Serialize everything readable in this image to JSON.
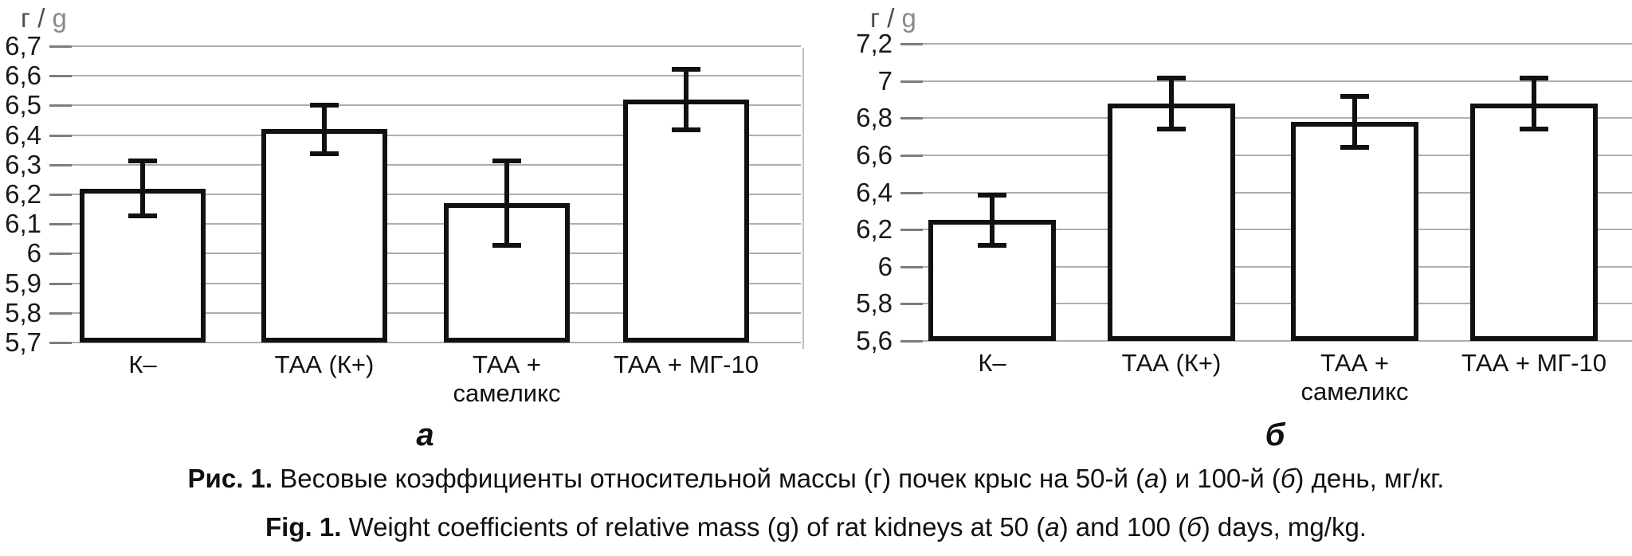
{
  "chart_data": [
    {
      "type": "bar",
      "panel_label": "а",
      "axis_title_prefix": "г / ",
      "axis_title_unit": "g",
      "categories": [
        "К–",
        "ТАА (К+)",
        "ТАА +\nсамеликс",
        "ТАА + МГ-10"
      ],
      "values": [
        6.22,
        6.42,
        6.17,
        6.52
      ],
      "errors": [
        0.1,
        0.09,
        0.15,
        0.11
      ],
      "ylim": [
        5.7,
        6.7
      ],
      "ytick_step": 0.1,
      "ytick_labels": [
        "6,7",
        "6,6",
        "6,5",
        "6,4",
        "6,3",
        "6,2",
        "6,1",
        "6",
        "5,9",
        "5,8",
        "5,7"
      ],
      "grid": true,
      "bar_fill": "#ffffff",
      "bar_border": "#111111"
    },
    {
      "type": "bar",
      "panel_label": "б",
      "axis_title_prefix": "г / ",
      "axis_title_unit": "g",
      "categories": [
        "К–",
        "ТАА (К+)",
        "ТАА +\nсамеликс",
        "ТАА + МГ-10"
      ],
      "values": [
        6.25,
        6.88,
        6.78,
        6.88
      ],
      "errors": [
        0.15,
        0.15,
        0.15,
        0.15
      ],
      "ylim": [
        5.6,
        7.2
      ],
      "ytick_step": 0.2,
      "ytick_labels": [
        "7,2",
        "7",
        "6,8",
        "6,6",
        "6,4",
        "6,2",
        "6",
        "5,8",
        "5,6"
      ],
      "grid": true,
      "bar_fill": "#ffffff",
      "bar_border": "#111111"
    }
  ],
  "caption": {
    "ru": {
      "label": "Рис. 1.",
      "t1": " Весовые коэффициенты относительной массы (г) почек крыс на 50-й (",
      "a": "а",
      "t2": ") и 100-й (",
      "b": "б",
      "t3": ") день, мг/кг."
    },
    "en": {
      "label": "Fig. 1.",
      "t1": " Weight coefficients of relative mass (g) of rat kidneys at 50 (",
      "a": "а",
      "t2": ") and 100 (",
      "b": "б",
      "t3": ") days, mg/kg."
    }
  },
  "colors": {
    "gridline": "#aeaeae",
    "bar_border": "#111111",
    "bar_fill": "#ffffff",
    "axis_title": "#4d4d4d",
    "divider": "#c2c2c2"
  }
}
